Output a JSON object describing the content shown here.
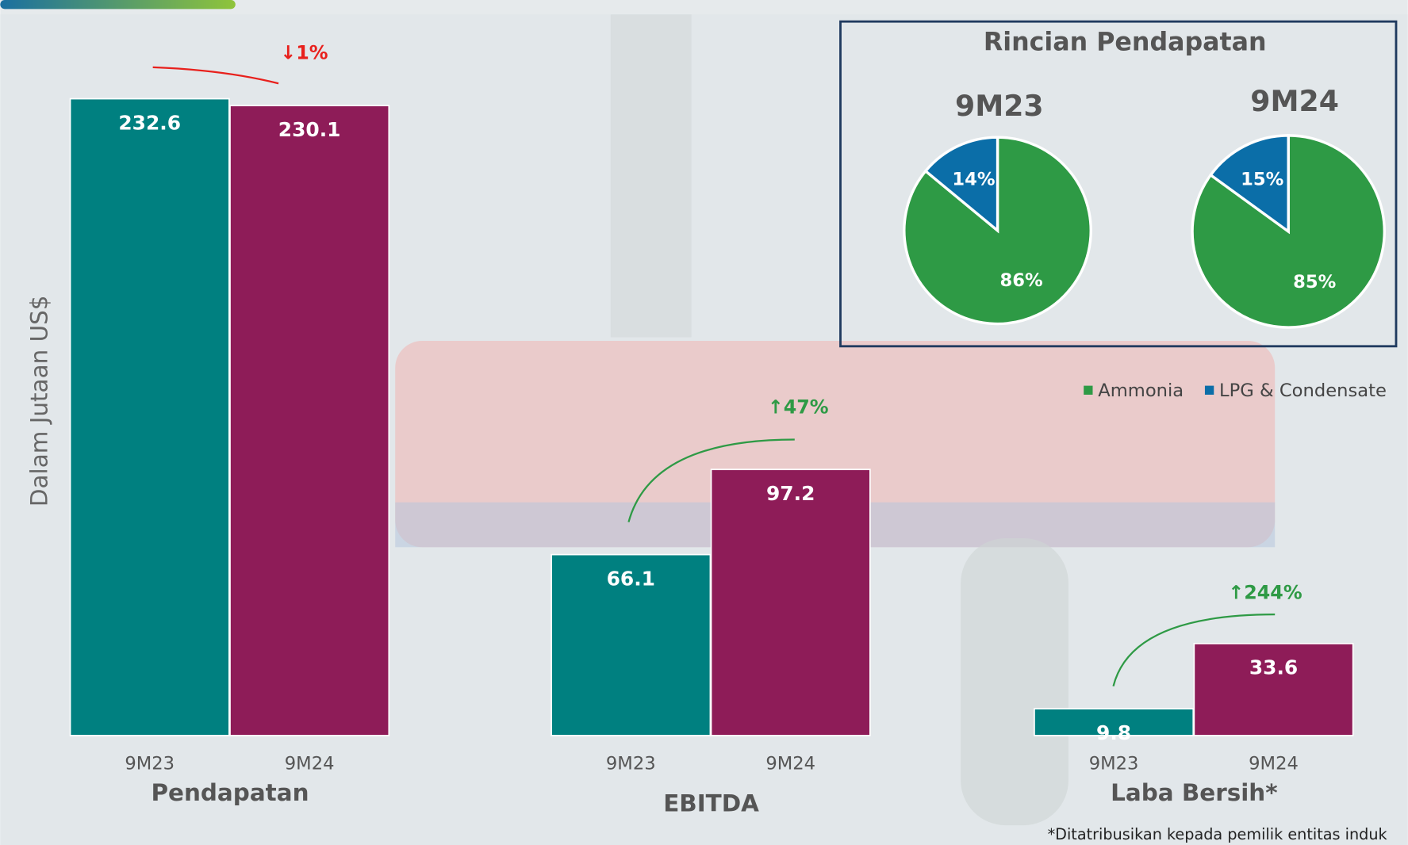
{
  "chart_data": [
    {
      "type": "bar",
      "y_label": "Dalam Jutaan US$",
      "categories": [
        "Pendapatan",
        "EBITDA",
        "Laba Bersih*"
      ],
      "series": [
        {
          "name": "9M23",
          "color": "#008080",
          "values": [
            232.6,
            66.1,
            9.8
          ]
        },
        {
          "name": "9M24",
          "color": "#8e1c58",
          "values": [
            230.1,
            97.2,
            33.6
          ]
        }
      ],
      "ylim": [
        0,
        240
      ],
      "annotations": [
        {
          "text": "↓1%",
          "color": "#e8201c"
        },
        {
          "text": "↑47%",
          "color": "#2e9a45"
        },
        {
          "text": "↑244%",
          "color": "#2e9a45"
        }
      ],
      "note": "*Ditatribusikan kepada pemilik entitas induk"
    },
    {
      "type": "pie",
      "title": "Rincian Pendapatan",
      "categories": [
        "Ammonia",
        "LPG & Condensate"
      ],
      "colors": [
        "#2e9a45",
        "#0b6ea8"
      ],
      "pies": [
        {
          "name": "9M23",
          "values": [
            86,
            14
          ],
          "value_labels": [
            "86%",
            "14%"
          ]
        },
        {
          "name": "9M24",
          "values": [
            85,
            15
          ],
          "value_labels": [
            "85%",
            "15%"
          ]
        }
      ]
    }
  ]
}
